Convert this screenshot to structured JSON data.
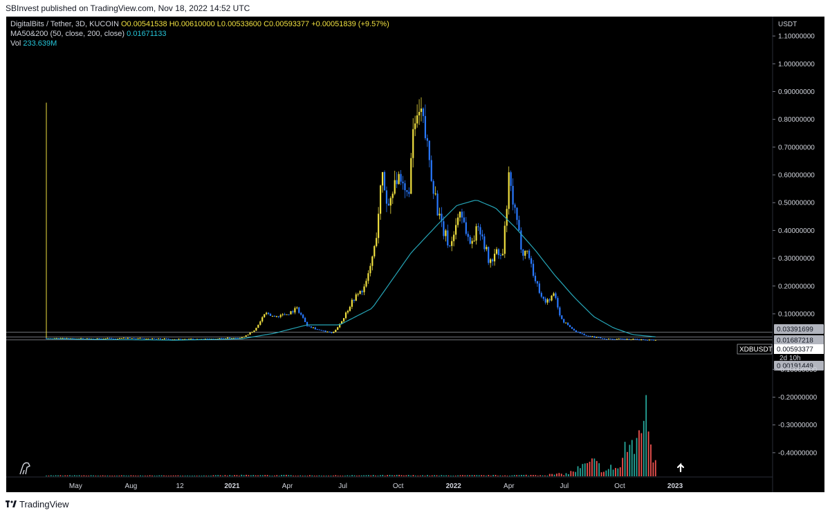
{
  "header": {
    "published": "SBInvest published on TradingView.com, Nov 18, 2022 14:52 UTC"
  },
  "legend": {
    "symbol": "DigitalBits / Tether, 3D, KUCOIN",
    "ohlc": "O0.00541538  H0.00610000  L0.00533600  C0.00593377  +0.00051839 (+9.57%)",
    "ma_label": "MA50&200 (50, close, 200, close)",
    "ma_value": "0.01671133",
    "vol_label": "Vol",
    "vol_value": "233.639M"
  },
  "axis": {
    "currency": "USDT",
    "ticker_label": "XDBUSDT",
    "countdown": "2d 10h"
  },
  "price_labels": [
    {
      "text": "0.03391699",
      "value": 0.03391699
    },
    {
      "text": "0.01687218",
      "value": 0.01687218
    },
    {
      "text": "0.00593377",
      "value": 0.00593377
    },
    {
      "text": "0.00191449",
      "value": 0.00191449
    }
  ],
  "footer": {
    "brand": "TradingView"
  },
  "colors": {
    "bull": "#f0e040",
    "bear": "#2979ff",
    "ma": "#26a6b8",
    "vol_up": "#26a69a",
    "vol_down": "#ef5350"
  },
  "chart_data": {
    "type": "line",
    "title": "",
    "ylim": [
      -0.46,
      1.14
    ],
    "y_ticks": [
      {
        "value": 1.1,
        "label": "1.10000000"
      },
      {
        "value": 1.0,
        "label": "1.00000000"
      },
      {
        "value": 0.9,
        "label": "0.90000000"
      },
      {
        "value": 0.8,
        "label": "0.80000000"
      },
      {
        "value": 0.7,
        "label": "0.70000000"
      },
      {
        "value": 0.6,
        "label": "0.60000000"
      },
      {
        "value": 0.5,
        "label": "0.50000000"
      },
      {
        "value": 0.4,
        "label": "0.40000000"
      },
      {
        "value": 0.3,
        "label": "0.30000000"
      },
      {
        "value": 0.2,
        "label": "0.20000000"
      },
      {
        "value": 0.1,
        "label": "0.10000000"
      },
      {
        "value": -0.1,
        "label": "-0.10000000"
      },
      {
        "value": -0.2,
        "label": "-0.20000000"
      },
      {
        "value": -0.3,
        "label": "-0.30000000"
      },
      {
        "value": -0.4,
        "label": "-0.40000000"
      }
    ],
    "x_ticks": [
      {
        "t": 0.045,
        "label": "May"
      },
      {
        "t": 0.13,
        "label": "Aug"
      },
      {
        "t": 0.205,
        "label": "12"
      },
      {
        "t": 0.285,
        "label": "2021"
      },
      {
        "t": 0.37,
        "label": "Apr"
      },
      {
        "t": 0.455,
        "label": "Jul"
      },
      {
        "t": 0.54,
        "label": "Oct"
      },
      {
        "t": 0.625,
        "label": "2022"
      },
      {
        "t": 0.71,
        "label": "Apr"
      },
      {
        "t": 0.795,
        "label": "Jul"
      },
      {
        "t": 0.88,
        "label": "Oct"
      },
      {
        "t": 0.965,
        "label": "2023"
      }
    ],
    "price_series": [
      {
        "t": 0.0,
        "v": 0.012
      },
      {
        "t": 0.06,
        "v": 0.01
      },
      {
        "t": 0.12,
        "v": 0.012
      },
      {
        "t": 0.18,
        "v": 0.01
      },
      {
        "t": 0.24,
        "v": 0.008
      },
      {
        "t": 0.3,
        "v": 0.015
      },
      {
        "t": 0.32,
        "v": 0.04
      },
      {
        "t": 0.335,
        "v": 0.1
      },
      {
        "t": 0.35,
        "v": 0.09
      },
      {
        "t": 0.37,
        "v": 0.1
      },
      {
        "t": 0.385,
        "v": 0.12
      },
      {
        "t": 0.4,
        "v": 0.06
      },
      {
        "t": 0.42,
        "v": 0.04
      },
      {
        "t": 0.44,
        "v": 0.03
      },
      {
        "t": 0.455,
        "v": 0.08
      },
      {
        "t": 0.47,
        "v": 0.15
      },
      {
        "t": 0.49,
        "v": 0.2
      },
      {
        "t": 0.505,
        "v": 0.35
      },
      {
        "t": 0.515,
        "v": 0.6
      },
      {
        "t": 0.525,
        "v": 0.48
      },
      {
        "t": 0.535,
        "v": 0.6
      },
      {
        "t": 0.545,
        "v": 0.55
      },
      {
        "t": 0.555,
        "v": 0.52
      },
      {
        "t": 0.565,
        "v": 0.78
      },
      {
        "t": 0.575,
        "v": 0.82
      },
      {
        "t": 0.585,
        "v": 0.7
      },
      {
        "t": 0.595,
        "v": 0.55
      },
      {
        "t": 0.605,
        "v": 0.42
      },
      {
        "t": 0.62,
        "v": 0.34
      },
      {
        "t": 0.635,
        "v": 0.48
      },
      {
        "t": 0.65,
        "v": 0.35
      },
      {
        "t": 0.665,
        "v": 0.42
      },
      {
        "t": 0.68,
        "v": 0.28
      },
      {
        "t": 0.69,
        "v": 0.32
      },
      {
        "t": 0.7,
        "v": 0.3
      },
      {
        "t": 0.71,
        "v": 0.58
      },
      {
        "t": 0.72,
        "v": 0.45
      },
      {
        "t": 0.73,
        "v": 0.33
      },
      {
        "t": 0.74,
        "v": 0.32
      },
      {
        "t": 0.75,
        "v": 0.22
      },
      {
        "t": 0.765,
        "v": 0.14
      },
      {
        "t": 0.78,
        "v": 0.17
      },
      {
        "t": 0.79,
        "v": 0.08
      },
      {
        "t": 0.81,
        "v": 0.04
      },
      {
        "t": 0.83,
        "v": 0.02
      },
      {
        "t": 0.86,
        "v": 0.01
      },
      {
        "t": 0.9,
        "v": 0.008
      },
      {
        "t": 0.935,
        "v": 0.006
      }
    ],
    "ma_series": [
      {
        "t": 0.0,
        "v": 0.01
      },
      {
        "t": 0.2,
        "v": 0.005
      },
      {
        "t": 0.3,
        "v": 0.01
      },
      {
        "t": 0.35,
        "v": 0.03
      },
      {
        "t": 0.4,
        "v": 0.06
      },
      {
        "t": 0.45,
        "v": 0.06
      },
      {
        "t": 0.5,
        "v": 0.12
      },
      {
        "t": 0.53,
        "v": 0.22
      },
      {
        "t": 0.56,
        "v": 0.32
      },
      {
        "t": 0.6,
        "v": 0.42
      },
      {
        "t": 0.63,
        "v": 0.49
      },
      {
        "t": 0.66,
        "v": 0.51
      },
      {
        "t": 0.69,
        "v": 0.48
      },
      {
        "t": 0.72,
        "v": 0.41
      },
      {
        "t": 0.75,
        "v": 0.33
      },
      {
        "t": 0.78,
        "v": 0.24
      },
      {
        "t": 0.81,
        "v": 0.16
      },
      {
        "t": 0.84,
        "v": 0.09
      },
      {
        "t": 0.87,
        "v": 0.05
      },
      {
        "t": 0.9,
        "v": 0.025
      },
      {
        "t": 0.935,
        "v": 0.017
      }
    ],
    "volume_series": [
      {
        "t": 0.0,
        "v": 0.005
      },
      {
        "t": 0.08,
        "v": 0.004
      },
      {
        "t": 0.16,
        "v": 0.004
      },
      {
        "t": 0.24,
        "v": 0.004
      },
      {
        "t": 0.3,
        "v": 0.006
      },
      {
        "t": 0.36,
        "v": 0.006
      },
      {
        "t": 0.42,
        "v": 0.004
      },
      {
        "t": 0.48,
        "v": 0.005
      },
      {
        "t": 0.54,
        "v": 0.006
      },
      {
        "t": 0.6,
        "v": 0.005
      },
      {
        "t": 0.66,
        "v": 0.005
      },
      {
        "t": 0.72,
        "v": 0.006
      },
      {
        "t": 0.76,
        "v": 0.008
      },
      {
        "t": 0.8,
        "v": 0.015
      },
      {
        "t": 0.82,
        "v": 0.05
      },
      {
        "t": 0.84,
        "v": 0.08
      },
      {
        "t": 0.86,
        "v": 0.03
      },
      {
        "t": 0.87,
        "v": 0.06
      },
      {
        "t": 0.88,
        "v": 0.04
      },
      {
        "t": 0.89,
        "v": 0.2
      },
      {
        "t": 0.9,
        "v": 0.14
      },
      {
        "t": 0.91,
        "v": 0.26
      },
      {
        "t": 0.915,
        "v": 0.45
      },
      {
        "t": 0.92,
        "v": 0.35
      },
      {
        "t": 0.925,
        "v": 0.3
      },
      {
        "t": 0.93,
        "v": 0.15
      },
      {
        "t": 0.935,
        "v": 0.1
      }
    ]
  }
}
